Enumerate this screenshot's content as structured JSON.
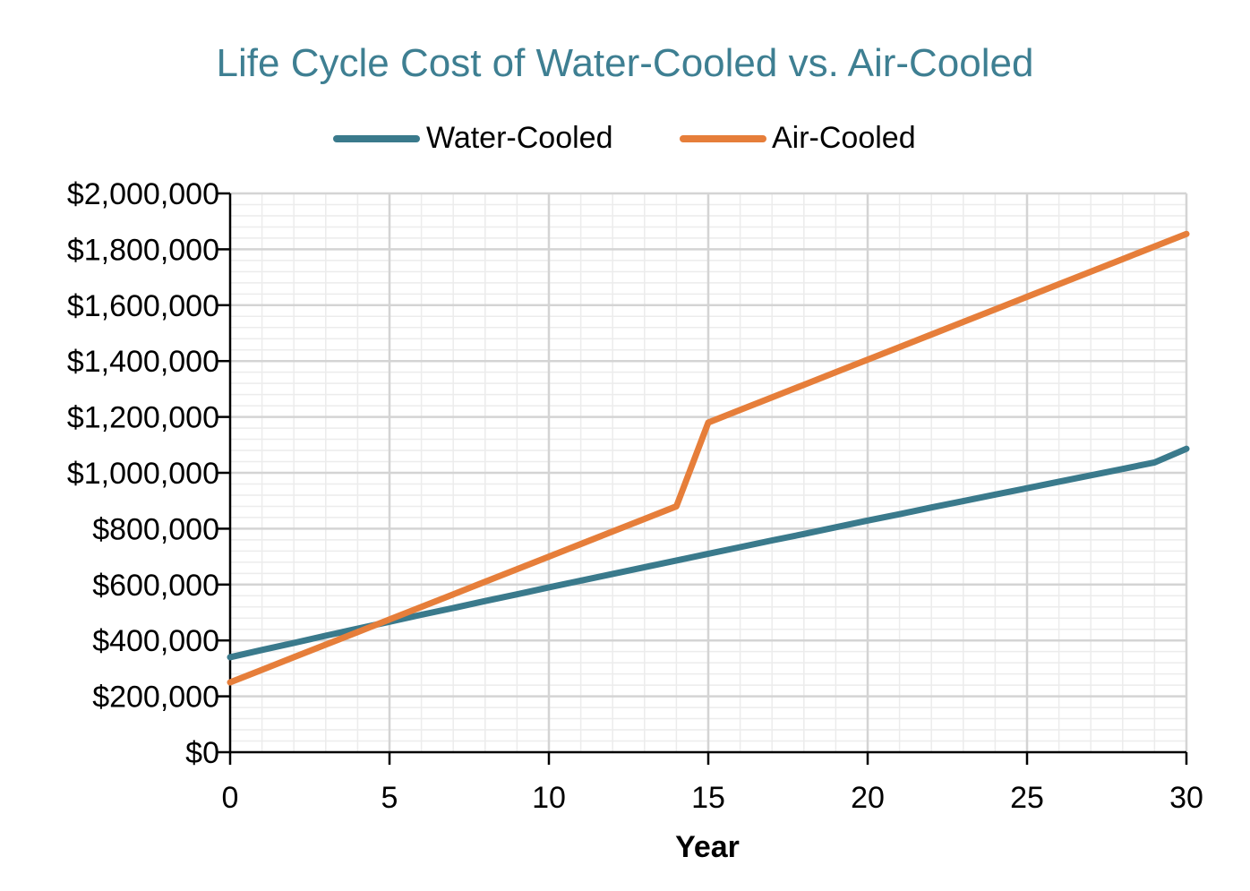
{
  "chart_data": {
    "type": "line",
    "title": "Life Cycle Cost of Water-Cooled vs. Air-Cooled",
    "xlabel": "Year",
    "ylabel": "",
    "xlim": [
      0,
      30
    ],
    "ylim": [
      0,
      2000000
    ],
    "x_ticks": [
      0,
      5,
      10,
      15,
      20,
      25,
      30
    ],
    "y_ticks": [
      0,
      200000,
      400000,
      600000,
      800000,
      1000000,
      1200000,
      1400000,
      1600000,
      1800000,
      2000000
    ],
    "x_tick_labels": [
      "0",
      "5",
      "10",
      "15",
      "20",
      "25",
      "30"
    ],
    "y_tick_labels": [
      "$0",
      "$200,000",
      "$400,000",
      "$600,000",
      "$800,000",
      "$1,000,000",
      "$1,200,000",
      "$1,400,000",
      "$1,600,000",
      "$1,800,000",
      "$2,000,000"
    ],
    "grid": true,
    "legend_position": "top",
    "x": [
      0,
      1,
      2,
      3,
      4,
      5,
      6,
      7,
      8,
      9,
      10,
      11,
      12,
      13,
      14,
      15,
      16,
      17,
      18,
      19,
      20,
      21,
      22,
      23,
      24,
      25,
      26,
      27,
      28,
      29,
      30
    ],
    "series": [
      {
        "name": "Water-Cooled",
        "color": "#3a7a8c",
        "values": [
          340000,
          366000,
          391000,
          417000,
          442000,
          467000,
          492000,
          516000,
          541000,
          565000,
          590000,
          614000,
          638000,
          662000,
          686000,
          710000,
          734000,
          758000,
          781000,
          805000,
          829000,
          852000,
          876000,
          899000,
          922000,
          945000,
          968000,
          991000,
          1014000,
          1037000,
          1086000
        ]
      },
      {
        "name": "Air-Cooled",
        "color": "#e67e3a",
        "values": [
          250000,
          295000,
          340000,
          385000,
          430000,
          475000,
          520000,
          565000,
          610000,
          655000,
          700000,
          745000,
          790000,
          835000,
          880000,
          1180000,
          1225000,
          1270000,
          1315000,
          1360000,
          1405000,
          1450000,
          1495000,
          1540000,
          1585000,
          1630000,
          1675000,
          1720000,
          1765000,
          1810000,
          1855000
        ]
      }
    ]
  }
}
